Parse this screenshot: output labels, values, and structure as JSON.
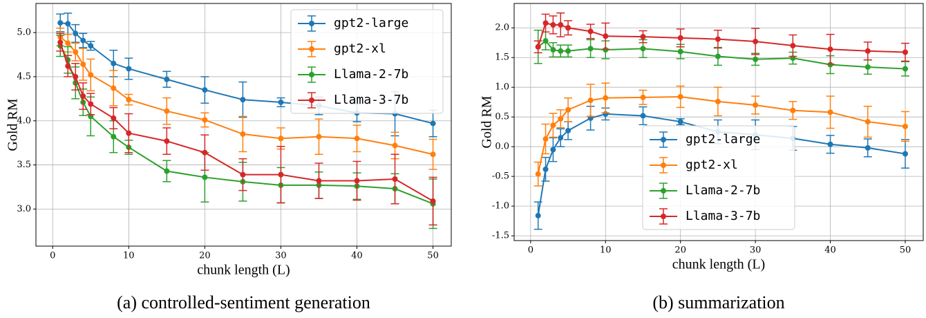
{
  "chart_data": [
    {
      "type": "errorbar-line",
      "caption": "(a) controlled-sentiment generation",
      "x_label": "chunk length (L)",
      "y_label": "Gold RM",
      "x": [
        1,
        2,
        3,
        4,
        5,
        8,
        10,
        15,
        20,
        25,
        30,
        35,
        40,
        45,
        50
      ],
      "xlim": [
        -2.2,
        52.4
      ],
      "xticks": [
        0,
        10,
        20,
        30,
        40,
        50
      ],
      "ylim": [
        2.58,
        5.33
      ],
      "yticks": [
        {
          "value": 3,
          "label": "3.0"
        },
        3.5,
        {
          "value": 4,
          "label": "4.0"
        },
        4.5,
        {
          "value": 5,
          "label": "5.0"
        }
      ],
      "grid": true,
      "legend_loc": "upper right",
      "series": [
        {
          "name": "gpt2-large",
          "color": "#1f77b4",
          "values": [
            5.11,
            5.1,
            4.99,
            4.91,
            4.85,
            4.65,
            4.59,
            4.47,
            4.35,
            4.24,
            4.21,
            4.17,
            4.09,
            4.08,
            3.97
          ],
          "errors": [
            0.1,
            0.12,
            0.1,
            0.08,
            0.05,
            0.15,
            0.12,
            0.09,
            0.15,
            0.2,
            0.05,
            0.1,
            0.1,
            0.25,
            0.15
          ]
        },
        {
          "name": "gpt2-xl",
          "color": "#ff7f0e",
          "values": [
            4.95,
            4.88,
            4.78,
            4.64,
            4.52,
            4.37,
            4.24,
            4.11,
            4.01,
            3.85,
            3.8,
            3.82,
            3.8,
            3.72,
            3.62
          ],
          "errors": [
            0.1,
            0.1,
            0.1,
            0.18,
            0.18,
            0.2,
            0.06,
            0.15,
            0.08,
            0.2,
            0.12,
            0.2,
            0.15,
            0.15,
            0.17
          ]
        },
        {
          "name": "Llama-2-7b",
          "color": "#2ca02c",
          "values": [
            4.85,
            4.69,
            4.43,
            4.21,
            4.05,
            3.82,
            3.7,
            3.43,
            3.36,
            3.31,
            3.27,
            3.27,
            3.26,
            3.23,
            3.06
          ],
          "errors": [
            0.12,
            0.15,
            0.18,
            0.15,
            0.22,
            0.18,
            0.08,
            0.12,
            0.28,
            0.22,
            0.2,
            0.15,
            0.15,
            0.17,
            0.28
          ]
        },
        {
          "name": "Llama-3-7b",
          "color": "#d62728",
          "values": [
            4.89,
            4.62,
            4.5,
            4.28,
            4.19,
            4.03,
            3.86,
            3.77,
            3.64,
            3.39,
            3.39,
            3.32,
            3.32,
            3.34,
            3.09
          ],
          "errors": [
            0.1,
            0.12,
            0.15,
            0.15,
            0.12,
            0.12,
            0.22,
            0.15,
            0.2,
            0.18,
            0.32,
            0.2,
            0.22,
            0.28,
            0.27
          ]
        }
      ]
    },
    {
      "type": "errorbar-line",
      "caption": "(b) summarization",
      "x_label": "chunk length (L)",
      "y_label": "Gold RM",
      "x": [
        1,
        2,
        3,
        4,
        5,
        8,
        10,
        15,
        20,
        25,
        30,
        35,
        40,
        45,
        50
      ],
      "xlim": [
        -2.2,
        52.4
      ],
      "xticks": [
        0,
        10,
        20,
        30,
        40,
        50
      ],
      "ylim": [
        -1.58,
        2.41
      ],
      "yticks": [
        -1.5,
        {
          "value": -1,
          "label": "-1.0"
        },
        -0.5,
        {
          "value": 0,
          "label": "0.0"
        },
        0.5,
        {
          "value": 1,
          "label": "1.0"
        },
        1.5,
        {
          "value": 2,
          "label": "2.0"
        }
      ],
      "grid": true,
      "legend_loc": "lower center",
      "series": [
        {
          "name": "gpt2-large",
          "color": "#1f77b4",
          "values": [
            -1.16,
            -0.38,
            -0.05,
            0.15,
            0.27,
            0.48,
            0.55,
            0.52,
            0.42,
            0.25,
            0.2,
            0.14,
            0.04,
            -0.02,
            -0.12
          ],
          "errors": [
            0.23,
            0.2,
            0.2,
            0.15,
            0.15,
            0.2,
            0.1,
            0.15,
            0.05,
            0.2,
            0.25,
            0.2,
            0.15,
            0.15,
            0.24
          ]
        },
        {
          "name": "gpt2-xl",
          "color": "#ff7f0e",
          "values": [
            -0.46,
            0.13,
            0.36,
            0.47,
            0.62,
            0.78,
            0.82,
            0.83,
            0.84,
            0.76,
            0.7,
            0.61,
            0.58,
            0.42,
            0.34
          ],
          "errors": [
            0.2,
            0.25,
            0.2,
            0.15,
            0.2,
            0.27,
            0.25,
            0.12,
            0.18,
            0.24,
            0.15,
            0.15,
            0.27,
            0.26,
            0.25
          ]
        },
        {
          "name": "Llama-2-7b",
          "color": "#2ca02c",
          "values": [
            1.68,
            1.78,
            1.63,
            1.61,
            1.61,
            1.65,
            1.63,
            1.65,
            1.6,
            1.52,
            1.47,
            1.49,
            1.38,
            1.34,
            1.31
          ],
          "errors": [
            0.28,
            0.15,
            0.12,
            0.1,
            0.1,
            0.15,
            0.15,
            0.15,
            0.12,
            0.15,
            0.1,
            0.1,
            0.15,
            0.12,
            0.12
          ]
        },
        {
          "name": "Llama-3-7b",
          "color": "#d62728",
          "values": [
            1.68,
            2.08,
            2.05,
            2.05,
            2.0,
            1.94,
            1.86,
            1.85,
            1.83,
            1.81,
            1.77,
            1.7,
            1.64,
            1.61,
            1.59
          ],
          "errors": [
            0.1,
            0.15,
            0.15,
            0.2,
            0.12,
            0.12,
            0.22,
            0.1,
            0.15,
            0.15,
            0.22,
            0.18,
            0.25,
            0.15,
            0.15
          ]
        }
      ]
    }
  ]
}
